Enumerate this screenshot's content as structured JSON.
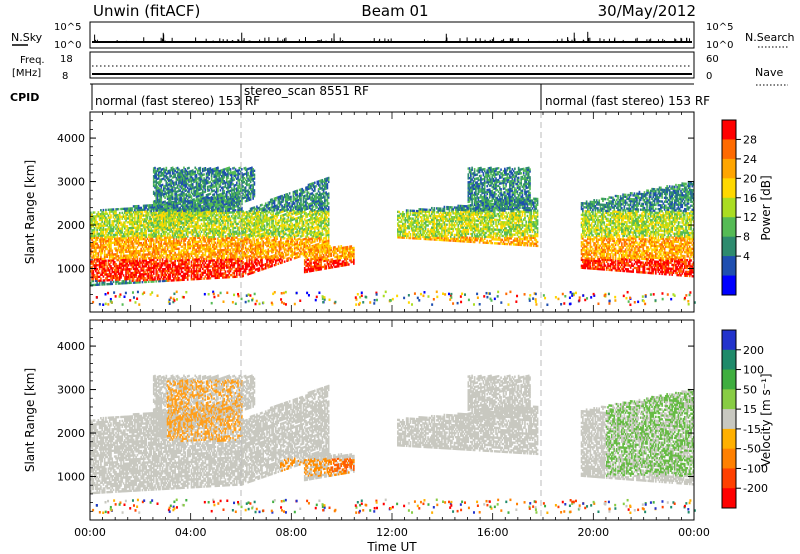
{
  "header": {
    "station": "Unwin (fitACF)",
    "beam": "Beam 01",
    "date": "30/May/2012"
  },
  "status_panels": {
    "nsky_label": "N.Sky",
    "nsearch_label": "N.Search",
    "freq_label_1": "Freq.",
    "freq_label_2": "[MHz]",
    "nave_label": "Nave",
    "cpid_label": "CPID",
    "nsky_ticks": [
      "10^5",
      "10^0"
    ],
    "nsearch_ticks": [
      "10^5",
      "10^0"
    ],
    "freq_ticks": [
      "18",
      "8"
    ],
    "nave_ticks": [
      "60",
      "0"
    ],
    "cpid_segments": [
      {
        "label": "normal (fast stereo) 153 RF",
        "start_hour": 0
      },
      {
        "label": "stereo_scan 8551 RF",
        "start_hour": 6
      },
      {
        "label": "normal (fast stereo) 153 RF",
        "start_hour": 18
      }
    ]
  },
  "chart_data": [
    {
      "type": "heatmap",
      "panel": "power",
      "ylabel": "Slant Range [km]",
      "ylim": [
        0,
        4600
      ],
      "yticks": [
        "1000",
        "2000",
        "3000",
        "4000"
      ],
      "xlim_hours": [
        0,
        24
      ],
      "colorbar_label": "Power [dB]",
      "colorbar_ticks": [
        "28",
        "24",
        "20",
        "16",
        "12",
        "8",
        "4"
      ],
      "colorbar_colors": [
        "#ff0000",
        "#ff6a00",
        "#ffa500",
        "#ffd800",
        "#aadd22",
        "#55bb55",
        "#2e8b6e",
        "#1f4fb0",
        "#0000ff"
      ],
      "echo_regions": [
        {
          "t_start": 0.0,
          "t_end": 6.0,
          "r_low_start": 600,
          "r_low_end": 800,
          "r_high_start": 2300,
          "r_high_end": 2700
        },
        {
          "t_start": 2.5,
          "t_end": 6.5,
          "r_low_start": 1800,
          "r_low_end": 2600,
          "r_high_start": 3300,
          "r_high_end": 3300
        },
        {
          "t_start": 6.0,
          "t_end": 9.5,
          "r_low_start": 800,
          "r_low_end": 1500,
          "r_high_start": 2300,
          "r_high_end": 3100
        },
        {
          "t_start": 8.5,
          "t_end": 10.5,
          "r_low_start": 900,
          "r_low_end": 1100,
          "r_high_start": 1500,
          "r_high_end": 1500
        },
        {
          "t_start": 12.2,
          "t_end": 17.8,
          "r_low_start": 1700,
          "r_low_end": 1500,
          "r_high_start": 2300,
          "r_high_end": 2600
        },
        {
          "t_start": 15.0,
          "t_end": 17.5,
          "r_low_start": 2200,
          "r_low_end": 2500,
          "r_high_start": 3300,
          "r_high_end": 3300
        },
        {
          "t_start": 19.5,
          "t_end": 24.0,
          "r_low_start": 1000,
          "r_low_end": 800,
          "r_high_start": 2500,
          "r_high_end": 3000
        }
      ],
      "power_scale": [
        {
          "from": 700,
          "to": 1200,
          "level": 0
        },
        {
          "from": 1200,
          "to": 1700,
          "level": 2
        },
        {
          "from": 1700,
          "to": 2300,
          "level": 4
        },
        {
          "from": 2300,
          "to": 3300,
          "level": 6
        }
      ],
      "ground_scatter_range": [
        150,
        450
      ]
    },
    {
      "type": "heatmap",
      "panel": "velocity",
      "ylabel": "Slant Range [km]",
      "ylim": [
        0,
        4600
      ],
      "yticks": [
        "1000",
        "2000",
        "3000",
        "4000"
      ],
      "xlabel": "Time UT",
      "xticks": [
        "00:00",
        "04:00",
        "08:00",
        "12:00",
        "16:00",
        "20:00",
        "00:00"
      ],
      "colorbar_label": "Velocity [m s⁻¹]",
      "colorbar_ticks": [
        "200",
        "100",
        "50",
        "15",
        "-15",
        "-50",
        "-100",
        "-200"
      ],
      "colorbar_colors": [
        "#2233cc",
        "#1f8a6a",
        "#3fae3f",
        "#88cc44",
        "#c8c8c0",
        "#ffb000",
        "#ff8000",
        "#ff4000",
        "#ff0000"
      ],
      "ground_scatter_color": "#c8c8c0",
      "velocity_features": [
        {
          "t_start": 3.0,
          "t_end": 6.0,
          "r_low": 1800,
          "r_high": 3200,
          "color": "#ff9f1c"
        },
        {
          "t_start": 7.5,
          "t_end": 10.5,
          "r_low": 1000,
          "r_high": 1400,
          "color": "#ff8c00"
        },
        {
          "t_start": 9.5,
          "t_end": 10.5,
          "r_low": 1100,
          "r_high": 1400,
          "color": "#ff5a00"
        },
        {
          "t_start": 20.5,
          "t_end": 24.0,
          "r_low": 1000,
          "r_high": 3100,
          "color": "#66bb44"
        }
      ]
    }
  ]
}
